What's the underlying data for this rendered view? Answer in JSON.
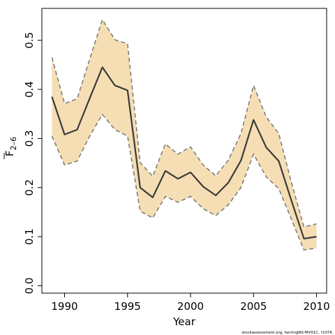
{
  "chart_data": {
    "type": "line",
    "title": "",
    "xlabel": "Year",
    "ylabel_main": "F",
    "ylabel_sub": "2–6",
    "xlim": [
      1988.2,
      2010.8
    ],
    "ylim": [
      -0.015,
      0.565
    ],
    "xticks": [
      1990,
      1995,
      2000,
      2005,
      2010
    ],
    "yticks": [
      0.0,
      0.1,
      0.2,
      0.3,
      0.4,
      0.5
    ],
    "xtick_labels": [
      "1990",
      "1995",
      "2000",
      "2005",
      "2010"
    ],
    "ytick_labels": [
      "0.0",
      "0.1",
      "0.2",
      "0.3",
      "0.4",
      "0.5"
    ],
    "grid": false,
    "x": [
      1989,
      1990,
      1991,
      1992,
      1993,
      1994,
      1995,
      1996,
      1997,
      1998,
      1999,
      2000,
      2001,
      2002,
      2003,
      2004,
      2005,
      2006,
      2007,
      2008,
      2009,
      2010
    ],
    "series": [
      {
        "role": "estimate",
        "values": [
          0.385,
          0.308,
          0.318,
          0.382,
          0.445,
          0.408,
          0.398,
          0.2,
          0.18,
          0.234,
          0.218,
          0.231,
          0.202,
          0.184,
          0.21,
          0.255,
          0.338,
          0.282,
          0.254,
          0.174,
          0.096,
          0.1
        ],
        "color": "#3a3a3a"
      },
      {
        "role": "upper",
        "values": [
          0.465,
          0.371,
          0.381,
          0.462,
          0.542,
          0.501,
          0.493,
          0.251,
          0.223,
          0.289,
          0.268,
          0.283,
          0.246,
          0.224,
          0.256,
          0.31,
          0.408,
          0.344,
          0.31,
          0.211,
          0.12,
          0.126
        ],
        "color": "#777777"
      },
      {
        "role": "lower",
        "values": [
          0.305,
          0.246,
          0.254,
          0.305,
          0.349,
          0.318,
          0.305,
          0.152,
          0.138,
          0.182,
          0.17,
          0.182,
          0.157,
          0.143,
          0.165,
          0.2,
          0.268,
          0.222,
          0.198,
          0.136,
          0.073,
          0.077
        ],
        "color": "#777777"
      }
    ],
    "band_color": "#f5deb3",
    "footnote": "stockassessment.org, herringNS-MV01C, r1076"
  }
}
